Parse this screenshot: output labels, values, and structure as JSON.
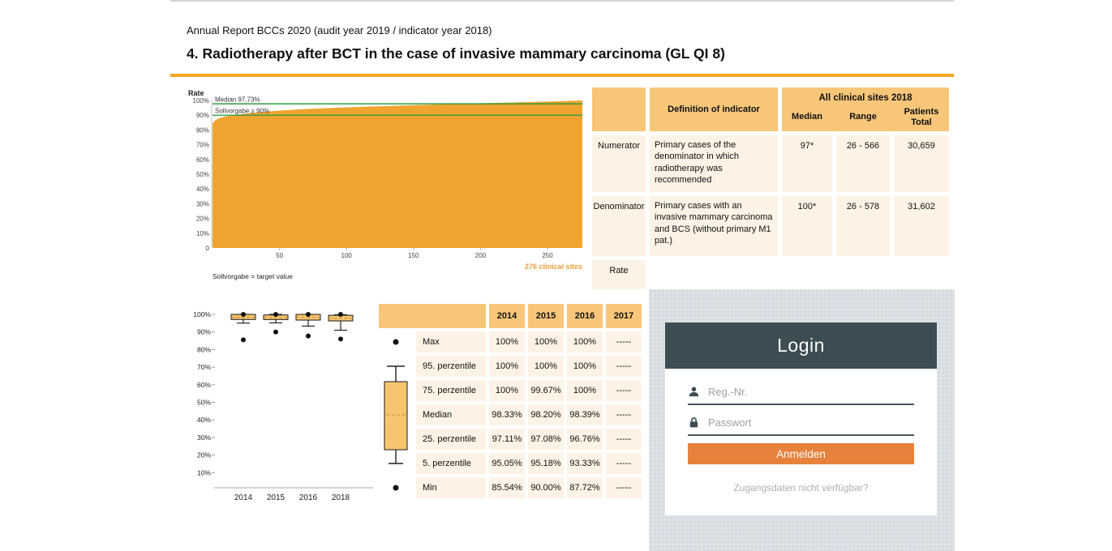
{
  "page": {
    "report_line": "Annual Report BCCs 2020 (audit year 2019 / indicator year 2018)",
    "title": "4. Radiotherapy after BCT in the case of invasive mammary carcinoma (GL QI 8)"
  },
  "colors": {
    "accent_orange": "#F5A227",
    "bar_orange": "#EFA430",
    "table_header_orange": "#F8C679",
    "table_row_cream": "#FCF3E6",
    "green_line": "#2F9E41",
    "login_header": "#3C4D54",
    "login_background": "#DCE2E5",
    "button_orange": "#E8813B"
  },
  "chart_data": [
    {
      "type": "bar",
      "title": "Rate",
      "ylabel": "Rate",
      "n_sites": 276,
      "sites_label": "276 clinical sites",
      "footnote": "Sollvorgabe = target value",
      "x_ticks": [
        50,
        100,
        150,
        200,
        250
      ],
      "y_ticks": [
        [
          100,
          "100%"
        ],
        [
          90,
          "90%"
        ],
        [
          80,
          "80%"
        ],
        [
          70,
          "70%"
        ],
        [
          60,
          "60%"
        ],
        [
          50,
          "50%"
        ],
        [
          40,
          "40%"
        ],
        [
          30,
          "30%"
        ],
        [
          20,
          "20%"
        ],
        [
          10,
          "10%"
        ],
        [
          0,
          "0"
        ]
      ],
      "ylim": [
        0,
        100
      ],
      "median_line": {
        "label": "Median 97,73%",
        "value": 97.73
      },
      "target_line": {
        "label": "Sollvorgabe ≥ 90%",
        "value": 90
      },
      "profile": [
        [
          0,
          84.5
        ],
        [
          2,
          86.5
        ],
        [
          5,
          88
        ],
        [
          10,
          89.3
        ],
        [
          18,
          90.4
        ],
        [
          30,
          91.6
        ],
        [
          45,
          92.8
        ],
        [
          65,
          94
        ],
        [
          90,
          95
        ],
        [
          115,
          95.8
        ],
        [
          140,
          96.5
        ],
        [
          165,
          97.2
        ],
        [
          190,
          97.9
        ],
        [
          215,
          98.4
        ],
        [
          235,
          98.9
        ],
        [
          255,
          99.4
        ],
        [
          268,
          99.8
        ],
        [
          276,
          100
        ]
      ],
      "bar_color": "#EFA430",
      "line_color": "#2F9E41",
      "sites_color": "#EE9D3A"
    },
    {
      "type": "boxplot",
      "categories": [
        "2014",
        "2015",
        "2016",
        "2018"
      ],
      "y_ticks": [
        100,
        90,
        80,
        70,
        60,
        50,
        40,
        30,
        20,
        10
      ],
      "ylim": [
        0,
        100
      ],
      "series": [
        {
          "year": "2014",
          "max": 100,
          "p95": 100,
          "p75": 100,
          "median": 98.33,
          "p25": 97.11,
          "p5": 95.05,
          "min": 85.54
        },
        {
          "year": "2015",
          "max": 100,
          "p95": 100,
          "p75": 99.67,
          "median": 98.2,
          "p25": 97.08,
          "p5": 95.18,
          "min": 90
        },
        {
          "year": "2016",
          "max": 100,
          "p95": 100,
          "p75": 100,
          "median": 98.39,
          "p25": 96.76,
          "p5": 93.33,
          "min": 87.72
        },
        {
          "year": "2018",
          "max": 100,
          "p95": 99.8,
          "p75": 99.5,
          "median": 97.73,
          "p25": 96.3,
          "p5": 91,
          "min": 86
        }
      ],
      "box_color": "#F6C66F",
      "median_color": "#C98A3A"
    }
  ],
  "indicator_table": {
    "definition_header": "Definition of indicator",
    "group_header": "All clinical sites 2018",
    "sub_headers": [
      "Median",
      "Range",
      "Patients Total"
    ],
    "rows": [
      {
        "label": "Numerator",
        "definition": "Primary cases of the denominator in which radiotherapy was recommended",
        "median": "97*",
        "range": "26 - 566",
        "patients": "30,659"
      },
      {
        "label": "Denominator",
        "definition": "Primary cases with an invasive mammary carcinoma and BCS (without primary M1 pat.)",
        "median": "100*",
        "range": "26 - 578",
        "patients": "31,602"
      },
      {
        "label": "Rate",
        "definition": "",
        "median": "",
        "range": "",
        "patients": ""
      }
    ]
  },
  "percentile_table": {
    "years": [
      "2014",
      "2015",
      "2016",
      "2017"
    ],
    "rows": [
      {
        "label": "Max",
        "values": [
          "100%",
          "100%",
          "100%",
          "-----"
        ]
      },
      {
        "label": "95. perzentile",
        "values": [
          "100%",
          "100%",
          "100%",
          "-----"
        ]
      },
      {
        "label": "75. perzentile",
        "values": [
          "100%",
          "99.67%",
          "100%",
          "-----"
        ]
      },
      {
        "label": "Median",
        "values": [
          "98.33%",
          "98.20%",
          "98.39%",
          "-----"
        ]
      },
      {
        "label": "25. perzentile",
        "values": [
          "97.11%",
          "97.08%",
          "96.76%",
          "-----"
        ]
      },
      {
        "label": "5. perzentile",
        "values": [
          "95.05%",
          "95.18%",
          "93.33%",
          "-----"
        ]
      },
      {
        "label": "Min",
        "values": [
          "85.54%",
          "90.00%",
          "87.72%",
          "-----"
        ]
      }
    ]
  },
  "login": {
    "title": "Login",
    "reg_placeholder": "Reg.-Nr.",
    "password_placeholder": "Passwort",
    "submit_label": "Anmelden",
    "help_link": "Zugangsdaten nicht verfügbar?"
  }
}
